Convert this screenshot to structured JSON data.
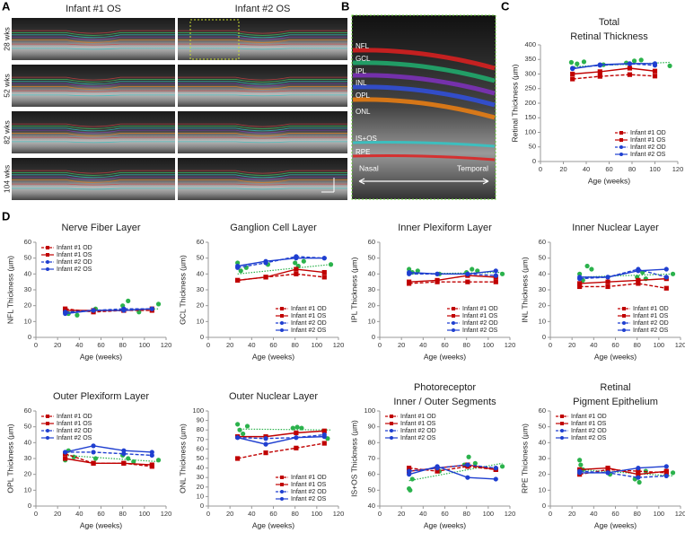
{
  "figure": {
    "panel_labels": [
      "A",
      "B",
      "C",
      "D"
    ],
    "panel_a": {
      "columns": [
        "Infant #1 OS",
        "Infant #2 OS"
      ],
      "rows": [
        "28 wks",
        "52 wks",
        "82 wks",
        "104 wks"
      ]
    },
    "panel_b": {
      "layers": [
        "NFL",
        "GCL",
        "IPL",
        "INL",
        "OPL",
        "ONL",
        "IS+OS",
        "RPE"
      ],
      "left": "Nasal",
      "right": "Temporal"
    }
  },
  "chart_data": [
    {
      "type": "line",
      "title": [
        "Total",
        "Retinal Thickness"
      ],
      "x_label": "Age (weeks)",
      "y_label": "Retinal Thickness (µm)",
      "xlim": [
        0,
        120
      ],
      "xticks": [
        0,
        20,
        40,
        60,
        80,
        100,
        120
      ],
      "ylim": [
        0,
        400
      ],
      "yticks": [
        0,
        50,
        100,
        150,
        200,
        250,
        300,
        350,
        400
      ],
      "legend": "lower right",
      "x": [
        28,
        52,
        78,
        100
      ],
      "series": [
        {
          "name": "Infant #1 OD",
          "color": "#c00000",
          "dash": true,
          "marker": "square",
          "values": [
            283,
            292,
            298,
            293
          ]
        },
        {
          "name": "Infant #1 OS",
          "color": "#c00000",
          "dash": false,
          "marker": "square",
          "values": [
            300,
            308,
            320,
            310
          ]
        },
        {
          "name": "Infant #2 OD",
          "color": "#1f3fd0",
          "dash": true,
          "marker": "circle",
          "values": [
            320,
            330,
            335,
            330
          ]
        },
        {
          "name": "Infant #2 OS",
          "color": "#1f3fd0",
          "dash": false,
          "marker": "circle",
          "values": [
            318,
            332,
            336,
            336
          ]
        }
      ],
      "reference": {
        "color": "#2bb24c",
        "x": [
          27,
          32,
          38,
          55,
          75,
          82,
          88,
          113
        ],
        "values": [
          340,
          335,
          342,
          332,
          338,
          345,
          348,
          328
        ],
        "trend_x": [
          27,
          113
        ],
        "trend": [
          325,
          340
        ]
      }
    },
    {
      "type": "line",
      "title": [
        "Nerve Fiber Layer"
      ],
      "x_label": "Age (weeks)",
      "y_label": "NFL Thickness (µm)",
      "xlim": [
        0,
        120
      ],
      "xticks": [
        0,
        20,
        40,
        60,
        80,
        100,
        120
      ],
      "ylim": [
        0,
        60
      ],
      "yticks": [
        0,
        10,
        20,
        30,
        40,
        50,
        60
      ],
      "legend": "upper left",
      "x": [
        27,
        53,
        81,
        107
      ],
      "series": [
        {
          "name": "Infant #1 OD",
          "color": "#c00000",
          "dash": true,
          "marker": "square",
          "values": [
            18,
            16,
            17,
            17
          ]
        },
        {
          "name": "Infant #1 OS",
          "color": "#c00000",
          "dash": false,
          "marker": "square",
          "values": [
            17,
            17,
            17,
            18
          ]
        },
        {
          "name": "Infant #2 OD",
          "color": "#1f3fd0",
          "dash": true,
          "marker": "circle",
          "values": [
            16,
            17,
            18,
            18
          ]
        },
        {
          "name": "Infant #2 OS",
          "color": "#1f3fd0",
          "dash": false,
          "marker": "circle",
          "values": [
            15,
            17,
            17,
            18
          ]
        }
      ],
      "reference": {
        "color": "#2bb24c",
        "x": [
          27,
          30,
          38,
          55,
          80,
          85,
          95,
          113
        ],
        "values": [
          17,
          15,
          14,
          18,
          20,
          23,
          16,
          21
        ],
        "trend_x": [
          27,
          113
        ],
        "trend": [
          16,
          18
        ]
      }
    },
    {
      "type": "line",
      "title": [
        "Ganglion Cell Layer"
      ],
      "x_label": "Age (weeks)",
      "y_label": "GCL Thickness (µm)",
      "xlim": [
        0,
        120
      ],
      "xticks": [
        0,
        20,
        40,
        60,
        80,
        100,
        120
      ],
      "ylim": [
        0,
        60
      ],
      "yticks": [
        0,
        10,
        20,
        30,
        40,
        50,
        60
      ],
      "legend": "lower right",
      "x": [
        27,
        53,
        81,
        107
      ],
      "series": [
        {
          "name": "Infant #1 OD",
          "color": "#c00000",
          "dash": true,
          "marker": "square",
          "values": [
            36,
            38,
            40,
            38
          ]
        },
        {
          "name": "Infant #1 OS",
          "color": "#c00000",
          "dash": false,
          "marker": "square",
          "values": [
            36,
            38,
            43,
            41
          ]
        },
        {
          "name": "Infant #2 OD",
          "color": "#1f3fd0",
          "dash": true,
          "marker": "circle",
          "values": [
            44,
            47,
            51,
            50
          ]
        },
        {
          "name": "Infant #2 OS",
          "color": "#1f3fd0",
          "dash": false,
          "marker": "circle",
          "values": [
            45,
            48,
            50,
            50
          ]
        }
      ],
      "reference": {
        "color": "#2bb24c",
        "x": [
          27,
          30,
          35,
          55,
          80,
          83,
          88,
          113
        ],
        "values": [
          47,
          42,
          44,
          46,
          47,
          45,
          48,
          46
        ],
        "trend_x": [
          27,
          113
        ],
        "trend": [
          40,
          46
        ]
      }
    },
    {
      "type": "line",
      "title": [
        "Inner Plexiform Layer"
      ],
      "x_label": "Age (weeks)",
      "y_label": "IPL Thickness (µm)",
      "xlim": [
        0,
        120
      ],
      "xticks": [
        0,
        20,
        40,
        60,
        80,
        100,
        120
      ],
      "ylim": [
        0,
        60
      ],
      "yticks": [
        0,
        10,
        20,
        30,
        40,
        50,
        60
      ],
      "legend": "lower right",
      "x": [
        27,
        53,
        81,
        107
      ],
      "series": [
        {
          "name": "Infant #1 OD",
          "color": "#c00000",
          "dash": true,
          "marker": "square",
          "values": [
            34,
            35,
            35,
            35
          ]
        },
        {
          "name": "Infant #1 OS",
          "color": "#c00000",
          "dash": false,
          "marker": "square",
          "values": [
            35,
            36,
            39,
            38
          ]
        },
        {
          "name": "Infant #2 OD",
          "color": "#1f3fd0",
          "dash": true,
          "marker": "circle",
          "values": [
            40,
            40,
            40,
            39
          ]
        },
        {
          "name": "Infant #2 OS",
          "color": "#1f3fd0",
          "dash": false,
          "marker": "circle",
          "values": [
            41,
            40,
            40,
            42
          ]
        }
      ],
      "reference": {
        "color": "#2bb24c",
        "x": [
          27,
          30,
          35,
          55,
          80,
          85,
          90,
          113
        ],
        "values": [
          43,
          41,
          42,
          40,
          41,
          43,
          42,
          40
        ],
        "trend_x": [
          27,
          113
        ],
        "trend": [
          40,
          41
        ]
      }
    },
    {
      "type": "line",
      "title": [
        "Inner Nuclear Layer"
      ],
      "x_label": "Age (weeks)",
      "y_label": "INL Thickness (µm)",
      "xlim": [
        0,
        120
      ],
      "xticks": [
        0,
        20,
        40,
        60,
        80,
        100,
        120
      ],
      "ylim": [
        0,
        60
      ],
      "yticks": [
        0,
        10,
        20,
        30,
        40,
        50,
        60
      ],
      "legend": "lower right",
      "x": [
        27,
        53,
        81,
        107
      ],
      "series": [
        {
          "name": "Infant #1 OD",
          "color": "#c00000",
          "dash": true,
          "marker": "square",
          "values": [
            32,
            32,
            34,
            31
          ]
        },
        {
          "name": "Infant #1 OS",
          "color": "#c00000",
          "dash": false,
          "marker": "square",
          "values": [
            34,
            35,
            36,
            37
          ]
        },
        {
          "name": "Infant #2 OD",
          "color": "#1f3fd0",
          "dash": true,
          "marker": "circle",
          "values": [
            37,
            38,
            43,
            38
          ]
        },
        {
          "name": "Infant #2 OS",
          "color": "#1f3fd0",
          "dash": false,
          "marker": "circle",
          "values": [
            38,
            38,
            42,
            43
          ]
        }
      ],
      "reference": {
        "color": "#2bb24c",
        "x": [
          27,
          30,
          34,
          38,
          80,
          85,
          88,
          113
        ],
        "values": [
          40,
          36,
          45,
          43,
          38,
          41,
          37,
          40
        ],
        "trend_x": [
          27,
          113
        ],
        "trend": [
          38,
          40
        ]
      }
    },
    {
      "type": "line",
      "title": [
        "Outer Plexiform Layer"
      ],
      "x_label": "Age (weeks)",
      "y_label": "OPL Thickness (µm)",
      "xlim": [
        0,
        120
      ],
      "xticks": [
        0,
        20,
        40,
        60,
        80,
        100,
        120
      ],
      "ylim": [
        0,
        60
      ],
      "yticks": [
        0,
        10,
        20,
        30,
        40,
        50,
        60
      ],
      "legend": "upper left",
      "x": [
        27,
        53,
        81,
        107
      ],
      "series": [
        {
          "name": "Infant #1 OD",
          "color": "#c00000",
          "dash": true,
          "marker": "square",
          "values": [
            33,
            27,
            27,
            25
          ]
        },
        {
          "name": "Infant #1 OS",
          "color": "#c00000",
          "dash": false,
          "marker": "square",
          "values": [
            30,
            27,
            27,
            26
          ]
        },
        {
          "name": "Infant #2 OD",
          "color": "#1f3fd0",
          "dash": true,
          "marker": "circle",
          "values": [
            34,
            34,
            33,
            32
          ]
        },
        {
          "name": "Infant #2 OS",
          "color": "#1f3fd0",
          "dash": false,
          "marker": "circle",
          "values": [
            34,
            38,
            35,
            34
          ]
        }
      ],
      "reference": {
        "color": "#2bb24c",
        "x": [
          27,
          30,
          35,
          55,
          80,
          85,
          90,
          113
        ],
        "values": [
          29,
          35,
          31,
          30,
          32,
          30,
          28,
          29
        ],
        "trend_x": [
          27,
          113
        ],
        "trend": [
          32,
          28
        ]
      }
    },
    {
      "type": "line",
      "title": [
        "Outer Nuclear Layer"
      ],
      "x_label": "Age (weeks)",
      "y_label": "ONL Thickness (µm)",
      "xlim": [
        0,
        120
      ],
      "xticks": [
        0,
        20,
        40,
        60,
        80,
        100,
        120
      ],
      "ylim": [
        0,
        100
      ],
      "yticks": [
        0,
        10,
        20,
        30,
        40,
        50,
        60,
        70,
        80,
        90,
        100
      ],
      "legend": "lower right",
      "x": [
        27,
        53,
        81,
        107
      ],
      "series": [
        {
          "name": "Infant #1 OD",
          "color": "#c00000",
          "dash": true,
          "marker": "square",
          "values": [
            50,
            56,
            61,
            66
          ]
        },
        {
          "name": "Infant #1 OS",
          "color": "#c00000",
          "dash": false,
          "marker": "square",
          "values": [
            73,
            73,
            77,
            79
          ]
        },
        {
          "name": "Infant #2 OD",
          "color": "#1f3fd0",
          "dash": true,
          "marker": "circle",
          "values": [
            72,
            71,
            72,
            75
          ]
        },
        {
          "name": "Infant #2 OS",
          "color": "#1f3fd0",
          "dash": false,
          "marker": "circle",
          "values": [
            72,
            65,
            72,
            73
          ]
        }
      ],
      "reference": {
        "color": "#2bb24c",
        "x": [
          27,
          29,
          32,
          36,
          78,
          82,
          86,
          110
        ],
        "values": [
          86,
          80,
          76,
          84,
          82,
          83,
          82,
          71
        ],
        "trend_x": [
          27,
          113
        ],
        "trend": [
          81,
          80
        ]
      }
    },
    {
      "type": "line",
      "title": [
        "Photoreceptor",
        "Inner / Outer Segments"
      ],
      "x_label": "Age (weeks)",
      "y_label": "IS+OS Thickness (µm)",
      "xlim": [
        0,
        120
      ],
      "xticks": [
        0,
        20,
        40,
        60,
        80,
        100,
        120
      ],
      "ylim": [
        40,
        100
      ],
      "yticks": [
        40,
        50,
        60,
        70,
        80,
        90,
        100
      ],
      "legend": "upper left",
      "x": [
        27,
        53,
        81,
        107
      ],
      "series": [
        {
          "name": "Infant #1 OD",
          "color": "#c00000",
          "dash": true,
          "marker": "square",
          "values": [
            64,
            62,
            65,
            63
          ]
        },
        {
          "name": "Infant #1 OS",
          "color": "#c00000",
          "dash": false,
          "marker": "square",
          "values": [
            62,
            64,
            66,
            63
          ]
        },
        {
          "name": "Infant #2 OD",
          "color": "#1f3fd0",
          "dash": true,
          "marker": "circle",
          "values": [
            62,
            64,
            66,
            64
          ]
        },
        {
          "name": "Infant #2 OS",
          "color": "#1f3fd0",
          "dash": false,
          "marker": "circle",
          "values": [
            60,
            65,
            58,
            57
          ]
        }
      ],
      "reference": {
        "color": "#2bb24c",
        "x": [
          27,
          28,
          30,
          55,
          78,
          82,
          88,
          113
        ],
        "values": [
          51,
          50,
          57,
          62,
          66,
          71,
          67,
          65
        ],
        "trend_x": [
          27,
          113
        ],
        "trend": [
          56,
          67
        ]
      }
    },
    {
      "type": "line",
      "title": [
        "Retinal",
        "Pigment Epithelium"
      ],
      "x_label": "Age (weeks)",
      "y_label": "RPE Thickness (µm)",
      "xlim": [
        0,
        120
      ],
      "xticks": [
        0,
        20,
        40,
        60,
        80,
        100,
        120
      ],
      "ylim": [
        0,
        60
      ],
      "yticks": [
        0,
        10,
        20,
        30,
        40,
        50,
        60
      ],
      "legend": "upper left",
      "x": [
        27,
        53,
        81,
        107
      ],
      "series": [
        {
          "name": "Infant #1 OD",
          "color": "#c00000",
          "dash": true,
          "marker": "square",
          "values": [
            20,
            23,
            22,
            21
          ]
        },
        {
          "name": "Infant #1 OS",
          "color": "#c00000",
          "dash": false,
          "marker": "square",
          "values": [
            23,
            24,
            20,
            22
          ]
        },
        {
          "name": "Infant #2 OD",
          "color": "#1f3fd0",
          "dash": true,
          "marker": "circle",
          "values": [
            22,
            21,
            18,
            19
          ]
        },
        {
          "name": "Infant #2 OS",
          "color": "#1f3fd0",
          "dash": false,
          "marker": "circle",
          "values": [
            21,
            21,
            24,
            25
          ]
        }
      ],
      "reference": {
        "color": "#2bb24c",
        "x": [
          27,
          28,
          30,
          55,
          78,
          82,
          88,
          113
        ],
        "values": [
          29,
          26,
          23,
          20,
          17,
          15,
          22,
          21
        ],
        "trend_x": [
          27,
          113
        ],
        "trend": [
          23,
          19
        ]
      }
    }
  ]
}
